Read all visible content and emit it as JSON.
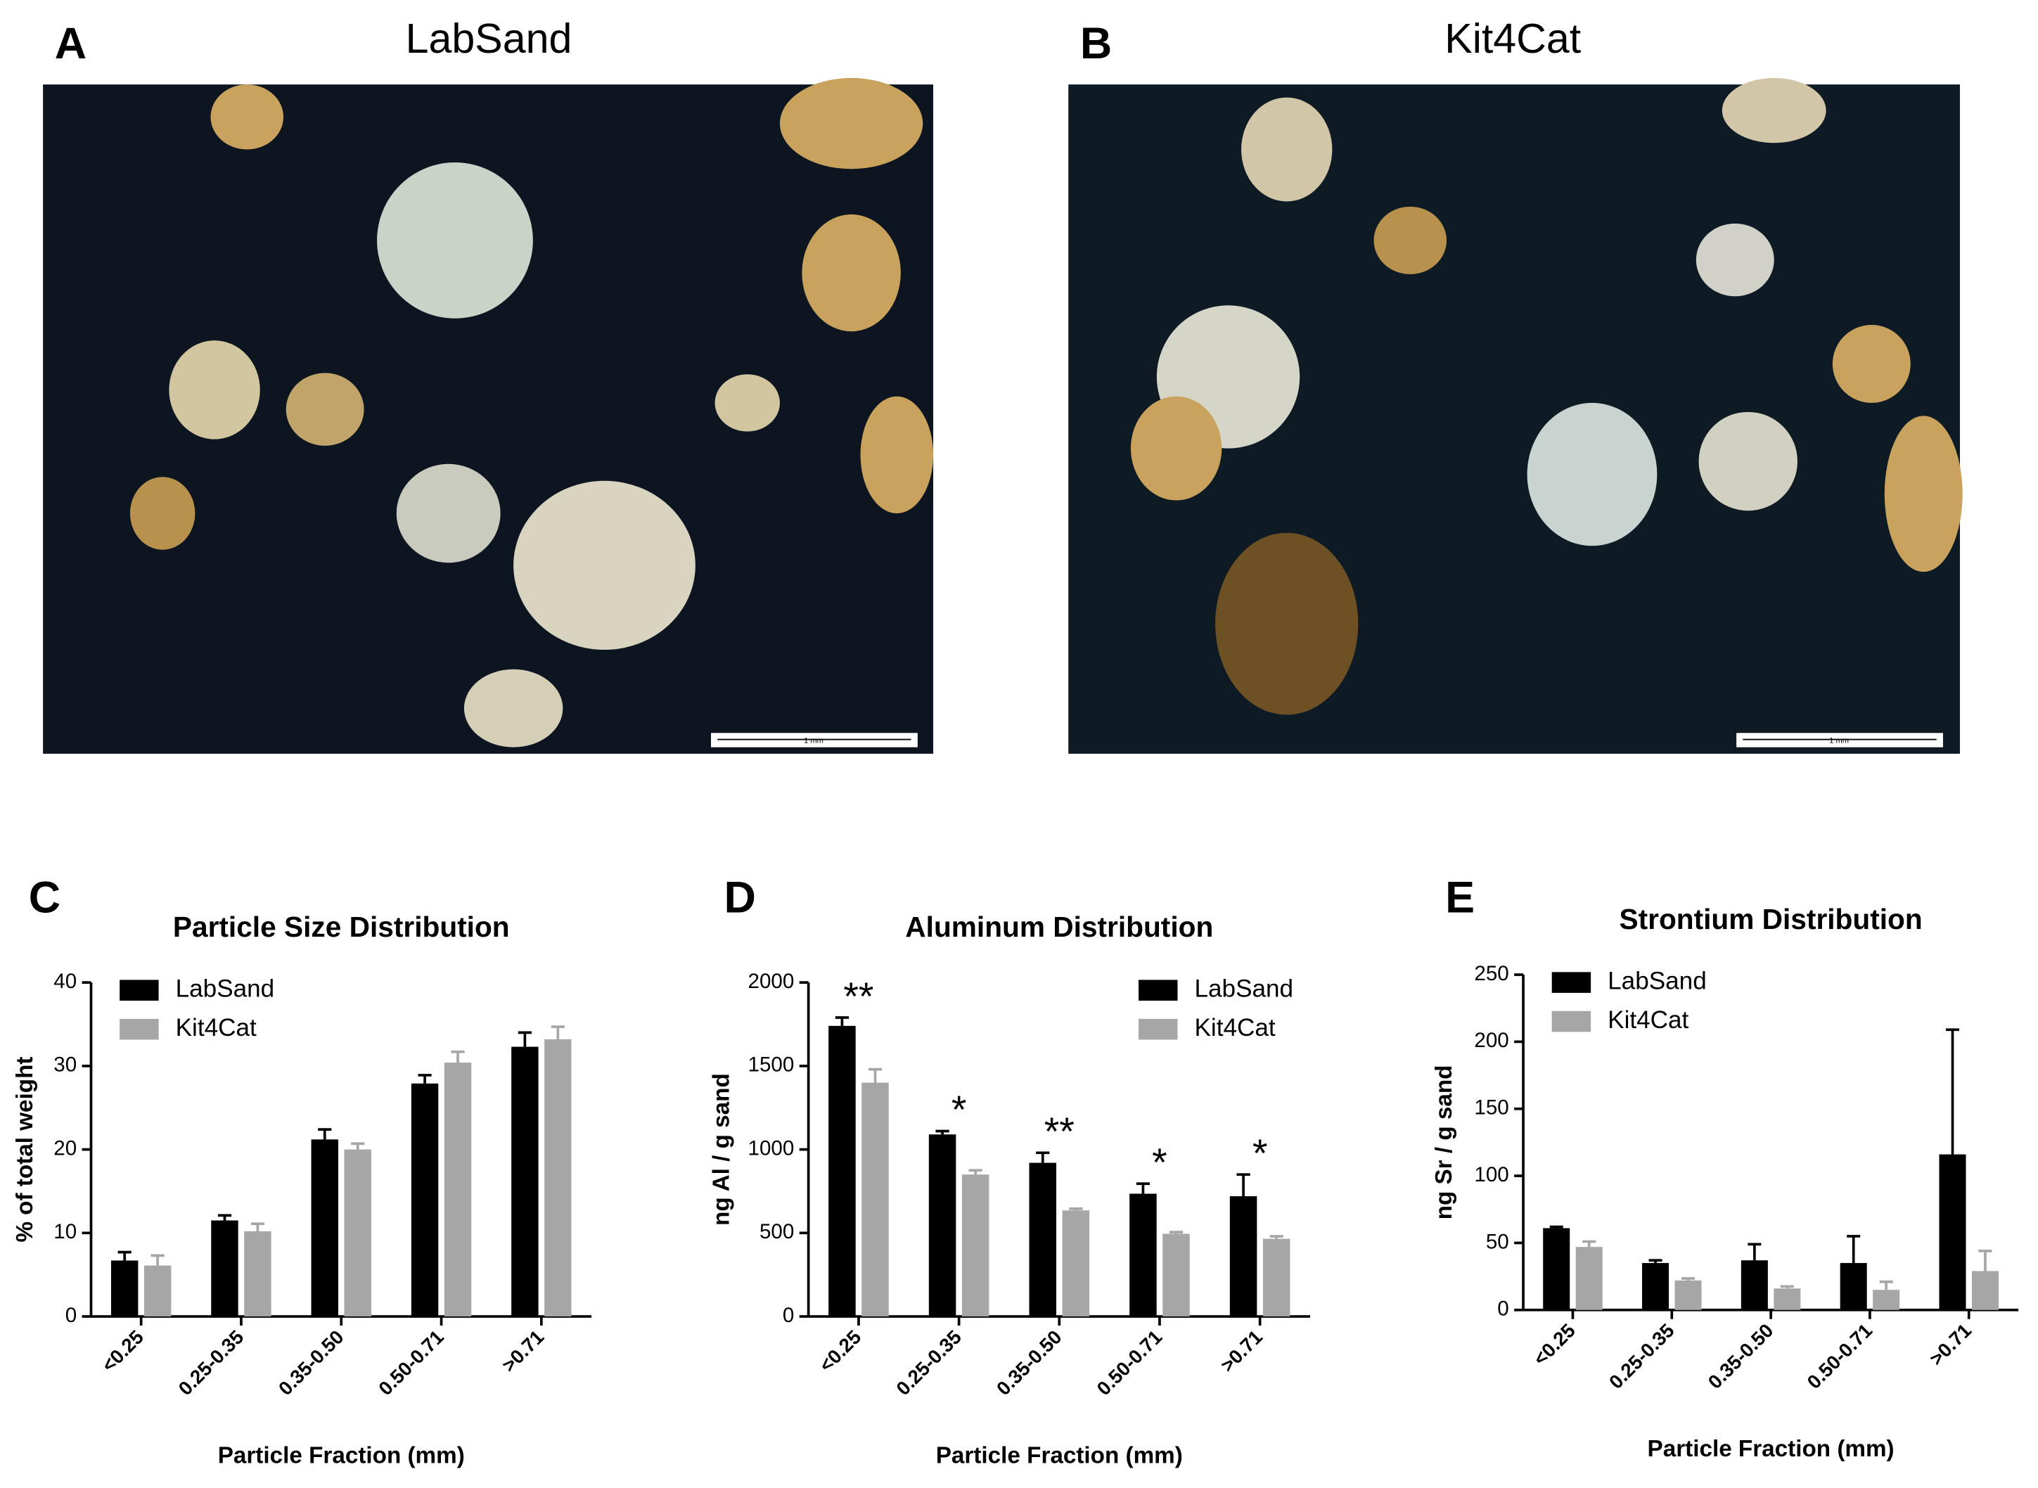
{
  "images": [
    {
      "label": "A",
      "title": "LabSand",
      "scale": "1 mm"
    },
    {
      "label": "B",
      "title": "Kit4Cat",
      "scale": "1 mm"
    }
  ],
  "chart_data": [
    {
      "type": "bar",
      "label": "C",
      "title": "Particle Size Distribution",
      "x_label": "Particle Fraction (mm)",
      "y_label": "% of total weight",
      "categories": [
        "<0.25",
        "0.25-0.35",
        "0.35-0.50",
        "0.50-0.71",
        ">0.71"
      ],
      "series": [
        {
          "name": "LabSand",
          "color": "#000000",
          "values": [
            6.7,
            11.5,
            21.2,
            27.9,
            32.3
          ],
          "errors": [
            1.0,
            0.6,
            1.2,
            1.0,
            1.7
          ]
        },
        {
          "name": "Kit4Cat",
          "color": "#a6a6a6",
          "values": [
            6.1,
            10.2,
            20.0,
            30.4,
            33.2
          ],
          "errors": [
            1.2,
            0.9,
            0.7,
            1.3,
            1.5
          ]
        }
      ],
      "ylim": [
        0,
        40
      ],
      "yticks": [
        0,
        10,
        20,
        30,
        40
      ],
      "legend": "upper left"
    },
    {
      "type": "bar",
      "label": "D",
      "title": "Aluminum Distribution",
      "x_label": "Particle Fraction (mm)",
      "y_label": "ng Al / g sand",
      "categories": [
        "<0.25",
        "0.25-0.35",
        "0.35-0.50",
        "0.50-0.71",
        ">0.71"
      ],
      "series": [
        {
          "name": "LabSand",
          "color": "#000000",
          "values": [
            1740,
            1090,
            920,
            735,
            720
          ],
          "errors": [
            50,
            20,
            60,
            60,
            130
          ]
        },
        {
          "name": "Kit4Cat",
          "color": "#a6a6a6",
          "values": [
            1400,
            850,
            635,
            495,
            465
          ],
          "errors": [
            80,
            25,
            10,
            10,
            15
          ]
        }
      ],
      "annotations": [
        "**",
        "*",
        "**",
        "*",
        "*"
      ],
      "ylim": [
        0,
        2000
      ],
      "yticks": [
        0,
        500,
        1000,
        1500,
        2000
      ],
      "legend": "upper right"
    },
    {
      "type": "bar",
      "label": "E",
      "title": "Strontium Distribution",
      "x_label": "Particle Fraction (mm)",
      "y_label": "ng Sr / g sand",
      "categories": [
        "<0.25",
        "0.25-0.35",
        "0.35-0.50",
        "0.50-0.71",
        ">0.71"
      ],
      "series": [
        {
          "name": "LabSand",
          "color": "#000000",
          "values": [
            61,
            35,
            37,
            35,
            116
          ],
          "errors": [
            1,
            2,
            12,
            20,
            93
          ]
        },
        {
          "name": "Kit4Cat",
          "color": "#a6a6a6",
          "values": [
            47,
            22,
            16,
            15,
            29
          ],
          "errors": [
            4,
            1.5,
            1.5,
            6,
            15
          ]
        }
      ],
      "ylim": [
        0,
        250
      ],
      "yticks": [
        0,
        50,
        100,
        150,
        200,
        250
      ],
      "legend": "upper left"
    }
  ]
}
